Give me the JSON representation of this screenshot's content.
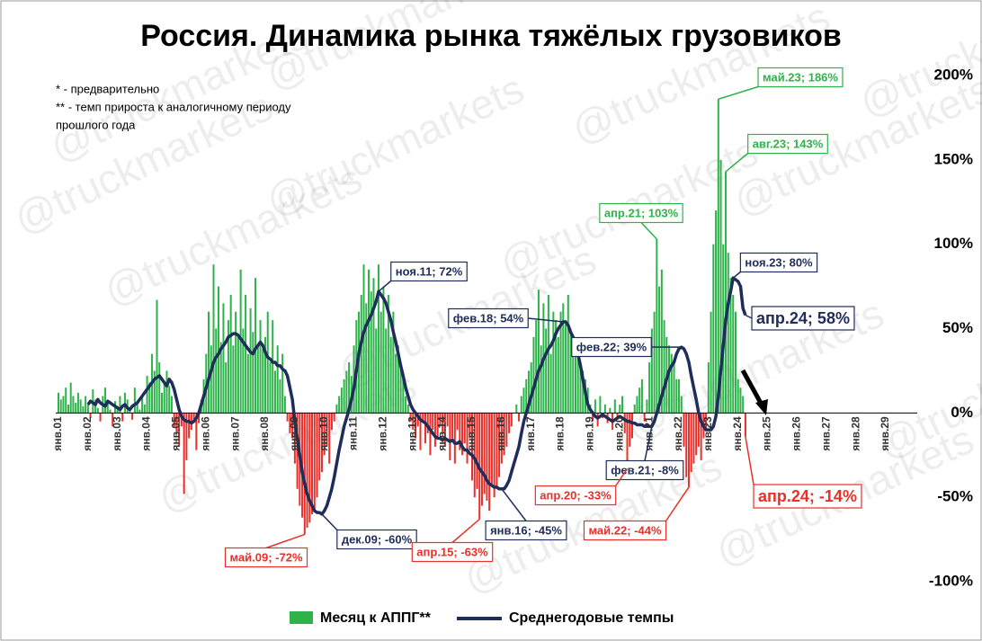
{
  "chart_data": {
    "type": "bar_line",
    "title": "Россия. Динамика рынка тяжёлых грузовиков",
    "notes": [
      "* - предварительно",
      "** - темп прироста к аналогичному периоду",
      "прошлого года"
    ],
    "watermark": "@truckmarkets",
    "categories": [
      "янв.01",
      null,
      null,
      null,
      null,
      null,
      null,
      null,
      null,
      null,
      null,
      null,
      "янв.02",
      null,
      null,
      null,
      null,
      null,
      null,
      null,
      null,
      null,
      null,
      null,
      "янв.03",
      null,
      null,
      null,
      null,
      null,
      null,
      null,
      null,
      null,
      null,
      null,
      "янв.04",
      null,
      null,
      null,
      null,
      null,
      null,
      null,
      null,
      null,
      null,
      null,
      "янв.05",
      null,
      null,
      null,
      null,
      null,
      null,
      null,
      null,
      null,
      null,
      null,
      "янв.06",
      null,
      null,
      null,
      null,
      null,
      null,
      null,
      null,
      null,
      null,
      null,
      "янв.07",
      null,
      null,
      null,
      null,
      null,
      null,
      null,
      null,
      null,
      null,
      null,
      "янв.08",
      null,
      null,
      null,
      null,
      null,
      null,
      null,
      null,
      null,
      null,
      null,
      "янв.09",
      null,
      null,
      null,
      null,
      null,
      null,
      null,
      null,
      null,
      null,
      null,
      "янв.10",
      null,
      null,
      null,
      null,
      null,
      null,
      null,
      null,
      null,
      null,
      null,
      "янв.11",
      null,
      null,
      null,
      null,
      null,
      null,
      null,
      null,
      null,
      null,
      null,
      "янв.12",
      null,
      null,
      null,
      null,
      null,
      null,
      null,
      null,
      null,
      null,
      null,
      "янв.13",
      null,
      null,
      null,
      null,
      null,
      null,
      null,
      null,
      null,
      null,
      null,
      "янв.14",
      null,
      null,
      null,
      null,
      null,
      null,
      null,
      null,
      null,
      null,
      null,
      "янв.15",
      null,
      null,
      null,
      null,
      null,
      null,
      null,
      null,
      null,
      null,
      null,
      "янв.16",
      null,
      null,
      null,
      null,
      null,
      null,
      null,
      null,
      null,
      null,
      null,
      "янв.17",
      null,
      null,
      null,
      null,
      null,
      null,
      null,
      null,
      null,
      null,
      null,
      "янв.18",
      null,
      null,
      null,
      null,
      null,
      null,
      null,
      null,
      null,
      null,
      null,
      "янв.19",
      null,
      null,
      null,
      null,
      null,
      null,
      null,
      null,
      null,
      null,
      null,
      "янв.20",
      null,
      null,
      null,
      null,
      null,
      null,
      null,
      null,
      null,
      null,
      null,
      "янв.21",
      null,
      null,
      null,
      null,
      null,
      null,
      null,
      null,
      null,
      null,
      null,
      "янв.22",
      null,
      null,
      null,
      null,
      null,
      null,
      null,
      null,
      null,
      null,
      null,
      "янв.23",
      null,
      null,
      null,
      null,
      null,
      null,
      null,
      null,
      null,
      null,
      null,
      "янв.24",
      null,
      null,
      null,
      null,
      null,
      null,
      null,
      null,
      null,
      null,
      null,
      "янв.25",
      null,
      null,
      null,
      null,
      null,
      null,
      null,
      null,
      null,
      null,
      null,
      "янв.26",
      null,
      null,
      null,
      null,
      null,
      null,
      null,
      null,
      null,
      null,
      null,
      "янв.27",
      null,
      null,
      null,
      null,
      null,
      null,
      null,
      null,
      null,
      null,
      null,
      "янв.28",
      null,
      null,
      null,
      null,
      null,
      null,
      null,
      null,
      null,
      null,
      null,
      "янв.29",
      null,
      null,
      null,
      null,
      null,
      null,
      null,
      null,
      null,
      null,
      null
    ],
    "series": [
      {
        "name": "Месяц к АППГ**",
        "kind": "bar",
        "color": "#2db34a",
        "negative_color": "#e8302a",
        "values": [
          12,
          8,
          10,
          15,
          5,
          18,
          10,
          6,
          12,
          8,
          4,
          10,
          5,
          -3,
          14,
          8,
          3,
          -5,
          10,
          15,
          6,
          2,
          -8,
          7,
          4,
          10,
          -5,
          12,
          8,
          3,
          -4,
          15,
          6,
          2,
          10,
          5,
          22,
          18,
          35,
          25,
          67,
          30,
          12,
          18,
          25,
          16,
          10,
          -8,
          -12,
          -20,
          -8,
          -48,
          -28,
          -15,
          -10,
          -5,
          -22,
          -6,
          8,
          20,
          35,
          60,
          40,
          88,
          50,
          75,
          42,
          65,
          30,
          55,
          70,
          40,
          60,
          45,
          85,
          50,
          70,
          35,
          62,
          48,
          80,
          40,
          55,
          38,
          45,
          60,
          30,
          55,
          25,
          40,
          20,
          35,
          10,
          -5,
          -12,
          -15,
          -30,
          -45,
          -55,
          -62,
          -72,
          -68,
          -65,
          -60,
          -58,
          -50,
          -40,
          -35,
          -25,
          -20,
          -30,
          -10,
          -5,
          5,
          10,
          15,
          20,
          25,
          30,
          22,
          40,
          55,
          60,
          70,
          88,
          65,
          85,
          72,
          80,
          50,
          88,
          60,
          75,
          50,
          70,
          45,
          60,
          35,
          40,
          30,
          20,
          10,
          5,
          -5,
          -10,
          -15,
          -8,
          -22,
          -5,
          -18,
          -12,
          -25,
          -10,
          -20,
          -15,
          -8,
          -12,
          -20,
          -8,
          -28,
          -15,
          -30,
          -10,
          -22,
          -25,
          -18,
          -30,
          -15,
          -40,
          -50,
          -45,
          -63,
          -55,
          -48,
          -52,
          -58,
          -42,
          -50,
          -45,
          -38,
          -30,
          -25,
          -20,
          -12,
          -8,
          0,
          5,
          -5,
          10,
          15,
          20,
          25,
          30,
          45,
          55,
          73,
          40,
          65,
          50,
          70,
          35,
          60,
          55,
          45,
          60,
          65,
          55,
          70,
          50,
          45,
          40,
          35,
          30,
          25,
          20,
          15,
          5,
          -5,
          8,
          -8,
          10,
          -3,
          5,
          -6,
          3,
          -10,
          8,
          -4,
          5,
          10,
          -12,
          -33,
          -20,
          -15,
          5,
          10,
          15,
          20,
          -5,
          8,
          30,
          50,
          60,
          103,
          75,
          85,
          55,
          45,
          40,
          35,
          30,
          20,
          20,
          10,
          -20,
          -38,
          -44,
          -35,
          -30,
          -25,
          -20,
          -28,
          -15,
          -10,
          30,
          60,
          100,
          120,
          186,
          150,
          100,
          143,
          95,
          80,
          70,
          60,
          20,
          15,
          10,
          -14,
          null,
          null,
          null,
          null,
          null,
          null,
          null,
          null,
          null,
          null,
          null,
          null,
          null,
          null,
          null,
          null,
          null,
          null,
          null,
          null,
          null,
          null,
          null,
          null,
          null,
          null,
          null,
          null,
          null,
          null,
          null,
          null,
          null,
          null,
          null,
          null,
          null,
          null,
          null,
          null,
          null,
          null,
          null,
          null,
          null,
          null,
          null,
          null,
          null,
          null,
          null,
          null,
          null,
          null,
          null,
          null,
          null,
          null,
          null,
          null,
          null,
          null,
          null,
          null,
          null,
          null,
          null,
          null
        ]
      },
      {
        "name": "Среднегодовые темпы",
        "kind": "line",
        "color": "#1f2d5a",
        "values": [
          null,
          null,
          null,
          null,
          null,
          null,
          null,
          null,
          null,
          null,
          null,
          null,
          5,
          7,
          6,
          5,
          8,
          6,
          5,
          4,
          7,
          6,
          5,
          4,
          3,
          2,
          4,
          5,
          3,
          2,
          4,
          5,
          6,
          8,
          10,
          12,
          14,
          16,
          18,
          20,
          21,
          22,
          20,
          18,
          16,
          20,
          18,
          14,
          8,
          2,
          -2,
          -4,
          -5,
          -5,
          -6,
          -5,
          -3,
          0,
          5,
          10,
          15,
          20,
          25,
          30,
          33,
          35,
          38,
          40,
          42,
          45,
          46,
          47,
          47,
          46,
          44,
          42,
          40,
          38,
          36,
          35,
          38,
          40,
          42,
          40,
          36,
          33,
          32,
          30,
          30,
          28,
          28,
          26,
          25,
          22,
          15,
          8,
          -5,
          -15,
          -25,
          -35,
          -42,
          -48,
          -52,
          -55,
          -58,
          -59,
          -59,
          -60,
          -58,
          -55,
          -50,
          -45,
          -38,
          -30,
          -22,
          -15,
          -8,
          -3,
          2,
          8,
          15,
          25,
          35,
          42,
          48,
          52,
          55,
          58,
          62,
          66,
          72,
          70,
          68,
          65,
          60,
          55,
          48,
          42,
          35,
          28,
          22,
          15,
          10,
          5,
          2,
          0,
          -2,
          -4,
          -5,
          -6,
          -8,
          -10,
          -12,
          -14,
          -15,
          -15,
          -16,
          -15,
          -16,
          -17,
          -16,
          -18,
          -18,
          -17,
          -20,
          -22,
          -22,
          -24,
          -25,
          -27,
          -30,
          -33,
          -35,
          -37,
          -40,
          -42,
          -43,
          -44,
          -44,
          -45,
          -45,
          -45,
          -43,
          -40,
          -35,
          -30,
          -25,
          -20,
          -12,
          -5,
          0,
          5,
          10,
          15,
          20,
          25,
          28,
          32,
          35,
          38,
          40,
          43,
          47,
          50,
          52,
          54,
          54,
          52,
          48,
          45,
          40,
          35,
          28,
          20,
          12,
          5,
          2,
          0,
          -2,
          -3,
          -2,
          -1,
          -2,
          -3,
          -4,
          -5,
          -4,
          -3,
          -2,
          -3,
          -4,
          -5,
          -5,
          -6,
          -6,
          -7,
          -7,
          -7,
          -8,
          -8,
          -8,
          -8,
          -5,
          0,
          5,
          10,
          15,
          20,
          25,
          28,
          30,
          35,
          38,
          39,
          38,
          35,
          30,
          22,
          15,
          8,
          0,
          -5,
          -8,
          -10,
          -10,
          -10,
          -8,
          -2,
          10,
          25,
          40,
          55,
          65,
          72,
          80,
          79,
          78,
          75,
          62,
          58,
          null,
          null,
          null,
          null,
          null,
          null,
          null,
          null,
          null,
          null,
          null,
          null,
          null,
          null,
          null,
          null,
          null,
          null,
          null,
          null,
          null,
          null,
          null,
          null,
          null,
          null,
          null,
          null,
          null,
          null,
          null,
          null,
          null,
          null,
          null,
          null,
          null,
          null,
          null,
          null,
          null,
          null,
          null,
          null,
          null,
          null,
          null,
          null,
          null,
          null,
          null,
          null,
          null,
          null,
          null,
          null,
          null,
          null,
          null,
          null,
          null,
          null,
          null,
          null,
          null,
          null,
          null,
          null
        ]
      }
    ],
    "ylim": [
      -100,
      200
    ],
    "yticks": [
      {
        "value": -100,
        "label": "-100%"
      },
      {
        "value": -50,
        "label": "-50%"
      },
      {
        "value": 0,
        "label": "0%"
      },
      {
        "value": 50,
        "label": "50%"
      },
      {
        "value": 100,
        "label": "100%"
      },
      {
        "value": 150,
        "label": "150%"
      },
      {
        "value": 200,
        "label": "200%"
      }
    ],
    "grid": false,
    "annotations": [
      {
        "text": "май.23; 186%",
        "color": "#2db34a"
      },
      {
        "text": "авг.23; 143%",
        "color": "#2db34a"
      },
      {
        "text": "апр.21; 103%",
        "color": "#2db34a"
      },
      {
        "text": "ноя.11; 72%",
        "color": "#1f2d5a"
      },
      {
        "text": "фев.18; 54%",
        "color": "#1f2d5a"
      },
      {
        "text": "фев.22; 39%",
        "color": "#1f2d5a"
      },
      {
        "text": "ноя.23; 80%",
        "color": "#1f2d5a"
      },
      {
        "text": "апр.24; 58%",
        "color": "#1f2d5a"
      },
      {
        "text": "дек.09; -60%",
        "color": "#1f2d5a"
      },
      {
        "text": "янв.16; -45%",
        "color": "#1f2d5a"
      },
      {
        "text": "фев.21; -8%",
        "color": "#1f2d5a"
      },
      {
        "text": "апр.20; -33%",
        "color": "#e8302a"
      },
      {
        "text": "май.22; -44%",
        "color": "#e8302a"
      },
      {
        "text": "май.09; -72%",
        "color": "#e8302a"
      },
      {
        "text": "апр.15; -63%",
        "color": "#e8302a"
      },
      {
        "text": "апр.24; -14%",
        "color": "#e8302a"
      }
    ]
  }
}
